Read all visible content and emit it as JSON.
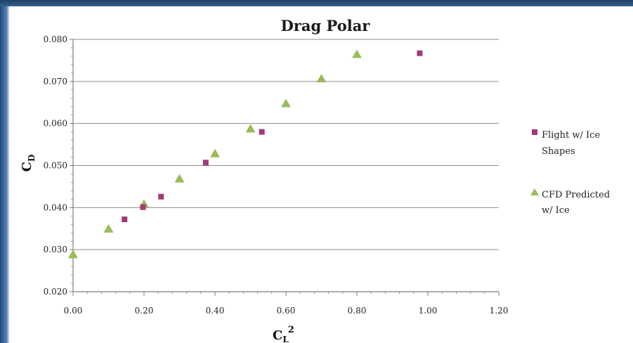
{
  "colors": {
    "flight": "#a23a78",
    "cfd": "#9bbb59",
    "grid": "#8c8c8c",
    "axis": "#7f7f7f",
    "band": "#2a4f7a"
  },
  "chart_data": {
    "type": "scatter",
    "title": "Drag Polar",
    "xlabel": "C",
    "xlabel_sub": "L",
    "xlabel_sup": "2",
    "ylabel": "C",
    "ylabel_sub": "D",
    "xlim": [
      0,
      1.2
    ],
    "ylim": [
      0.02,
      0.08
    ],
    "xticks": [
      "0.00",
      "0.20",
      "0.40",
      "0.60",
      "0.80",
      "1.00",
      "1.20"
    ],
    "yticks": [
      "0.020",
      "0.030",
      "0.040",
      "0.050",
      "0.060",
      "0.070",
      "0.080"
    ],
    "grid": "horizontal",
    "legend_position": "right",
    "series": [
      {
        "name": "Flight w/ Ice Shapes",
        "legend_lines": [
          "Flight w/ Ice",
          "Shapes"
        ],
        "marker": "square",
        "x": [
          0.145,
          0.197,
          0.248,
          0.374,
          0.532,
          0.977
        ],
        "y": [
          0.0372,
          0.0401,
          0.0426,
          0.0507,
          0.058,
          0.0767
        ]
      },
      {
        "name": "CFD Predicted w/ Ice",
        "legend_lines": [
          "CFD Predicted",
          "w/ Ice"
        ],
        "marker": "triangle",
        "x": [
          0.0,
          0.1,
          0.2,
          0.3,
          0.4,
          0.5,
          0.6,
          0.7,
          0.8
        ],
        "y": [
          0.0288,
          0.0349,
          0.0408,
          0.0468,
          0.0528,
          0.0587,
          0.0647,
          0.0706,
          0.0764
        ]
      }
    ]
  }
}
